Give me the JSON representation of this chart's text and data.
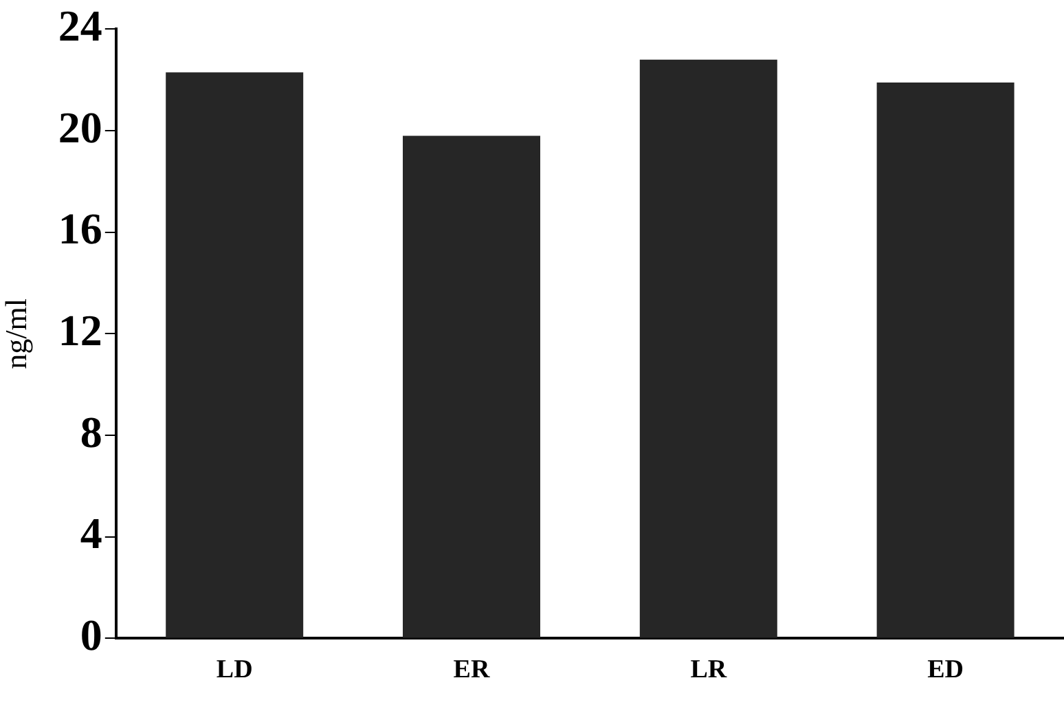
{
  "chart_data": {
    "type": "bar",
    "ylabel": "ng/ml",
    "categories": [
      "LD",
      "ER",
      "LR",
      "ED"
    ],
    "values": [
      22.3,
      19.8,
      22.8,
      21.9
    ],
    "color": "#262626",
    "ylim": [
      0,
      24
    ],
    "yticks": [
      0,
      4,
      8,
      12,
      16,
      20,
      24
    ],
    "grid": false,
    "legend": false
  }
}
